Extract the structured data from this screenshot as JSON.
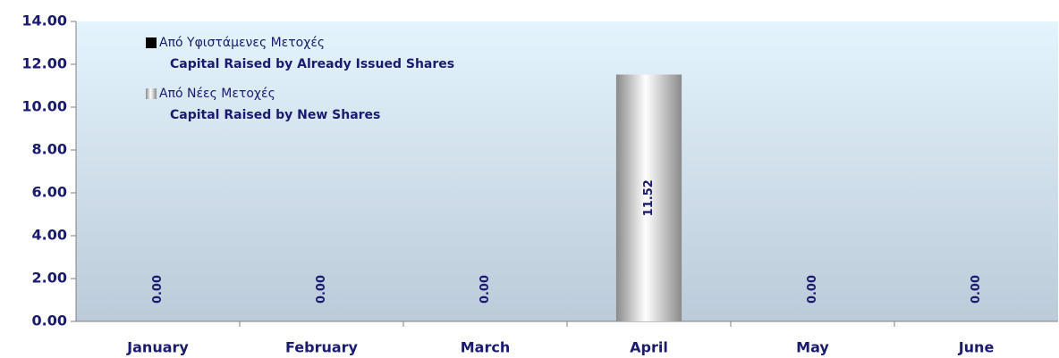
{
  "chart_data": {
    "type": "bar",
    "stacked": true,
    "categories": [
      "January",
      "February",
      "March",
      "April",
      "May",
      "June"
    ],
    "series": [
      {
        "name": "Από Υφιστάμενες Μετοχές",
        "name_en": "Capital Raised  by Already Issued Shares",
        "color": "#000000",
        "values": [
          0,
          0,
          0,
          0,
          0,
          0
        ]
      },
      {
        "name": "Από Νέες Μετοχές",
        "name_en": "Capital Raised  by New Shares",
        "color": "#b8b8b8",
        "values": [
          0,
          0,
          0,
          11.52,
          0,
          0
        ],
        "value_labels": [
          "0.00",
          "0.00",
          "0.00",
          "11.52",
          "0.00",
          "0.00"
        ]
      }
    ],
    "ylim": [
      0,
      14
    ],
    "yticks": [
      {
        "value": 0,
        "label": "0.00"
      },
      {
        "value": 2,
        "label": "2.00"
      },
      {
        "value": 4,
        "label": "4.00"
      },
      {
        "value": 6,
        "label": "6.00"
      },
      {
        "value": 8,
        "label": "8.00"
      },
      {
        "value": 10,
        "label": "10.00"
      },
      {
        "value": 12,
        "label": "12.00"
      },
      {
        "value": 14,
        "label": "14.00"
      }
    ],
    "grid": false,
    "legend": "top-left"
  }
}
